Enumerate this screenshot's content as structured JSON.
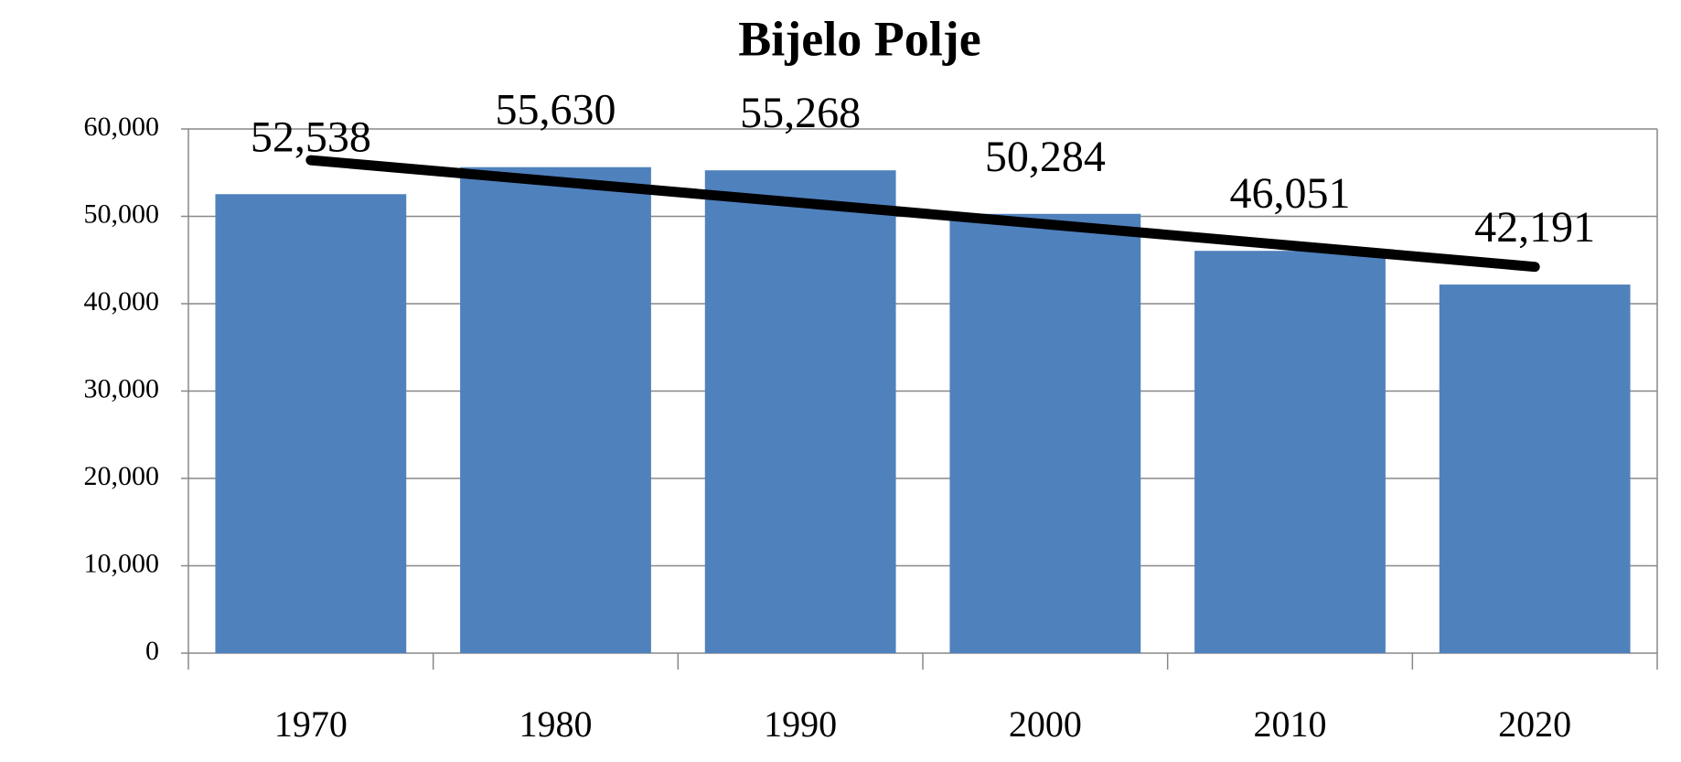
{
  "chart_data": {
    "type": "bar",
    "title": "Bijelo Polje",
    "categories": [
      "1970",
      "1980",
      "1990",
      "2000",
      "2010",
      "2020"
    ],
    "values": [
      52538,
      55630,
      55268,
      50284,
      46051,
      42191
    ],
    "value_labels": [
      "52,538",
      "55,630",
      "55,268",
      "50,284",
      "46,051",
      "42,191"
    ],
    "color": "#4f81bd",
    "ylim": [
      0,
      60000
    ],
    "yticks": [
      0,
      {
        "value": 10000,
        "label": "10,000"
      },
      {
        "value": 20000,
        "label": "20,000"
      },
      {
        "value": 30000,
        "label": "30,000"
      },
      {
        "value": 40000,
        "label": "40,000"
      },
      {
        "value": 50000,
        "label": "50,000"
      },
      {
        "value": 60000,
        "label": "60,000"
      }
    ],
    "grid": true,
    "trendline": "linear"
  }
}
